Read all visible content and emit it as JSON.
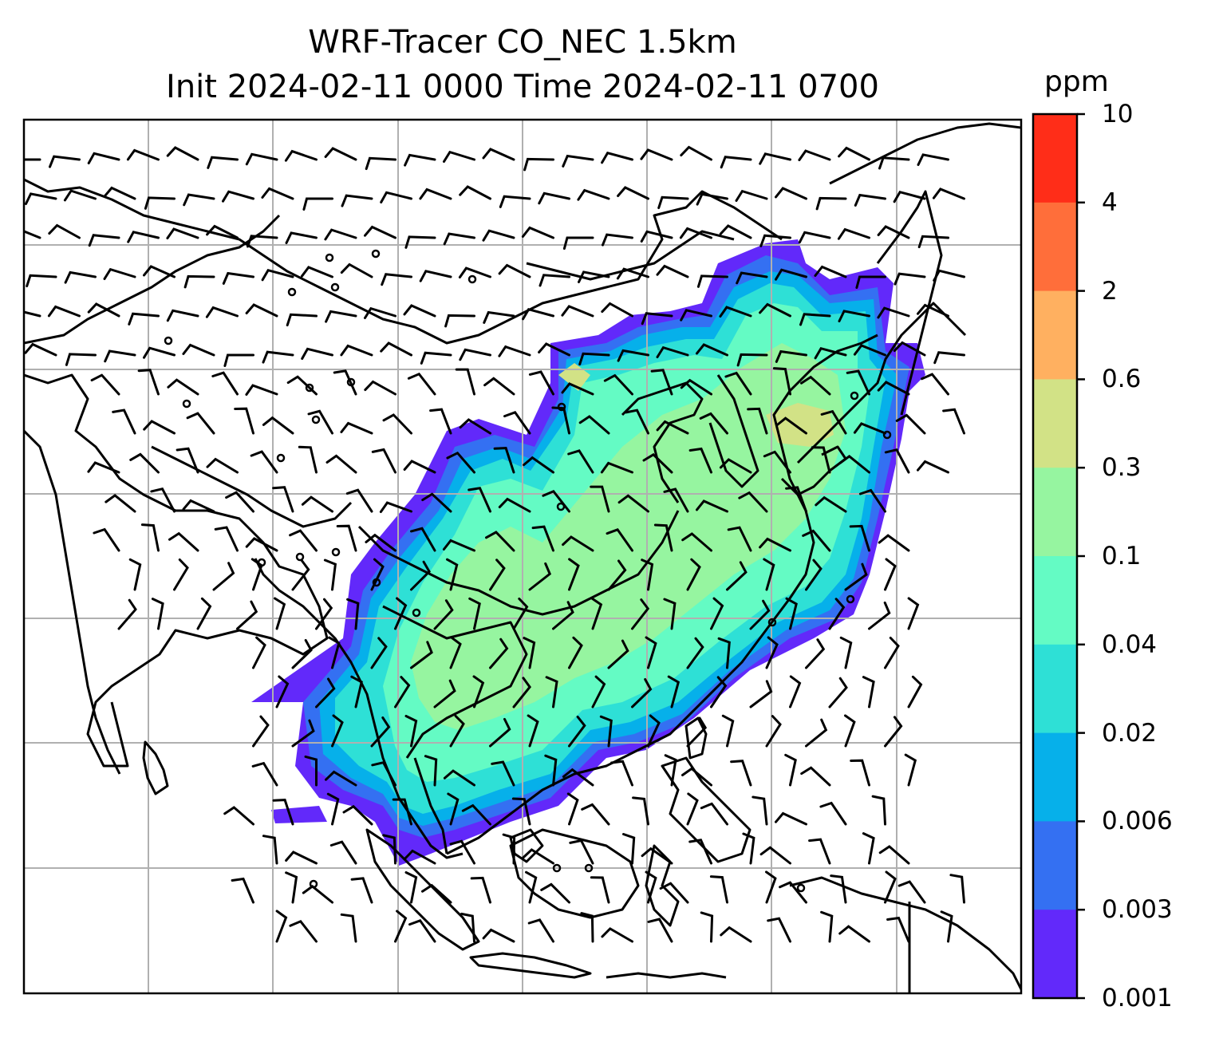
{
  "title": {
    "line1": "WRF-Tracer CO_NEC 1.5km",
    "line2": "Init 2024-02-11 0000 Time 2024-02-11 0700"
  },
  "colorbar": {
    "unit": "ppm",
    "labels": [
      "10",
      "4",
      "2",
      "0.6",
      "0.3",
      "0.1",
      "0.04",
      "0.02",
      "0.006",
      "0.003",
      "0.001"
    ],
    "colors": [
      "#ff2d18",
      "#ff6e3a",
      "#ffb060",
      "#d2e286",
      "#96f5a0",
      "#64fbc4",
      "#2ee0d6",
      "#06b0ea",
      "#3470f2",
      "#6229fa"
    ]
  },
  "map": {
    "ocean_color": "#ffffff",
    "gridline_color": "#b0b0b0",
    "coastline_color": "#000000",
    "wind_barb_color": "#000000",
    "plume_fill_colors": [
      "#6229fa",
      "#3470f2",
      "#06b0ea",
      "#2ee0d6",
      "#64fbc4",
      "#96f5a0",
      "#d2e286"
    ],
    "grid": "on"
  }
}
